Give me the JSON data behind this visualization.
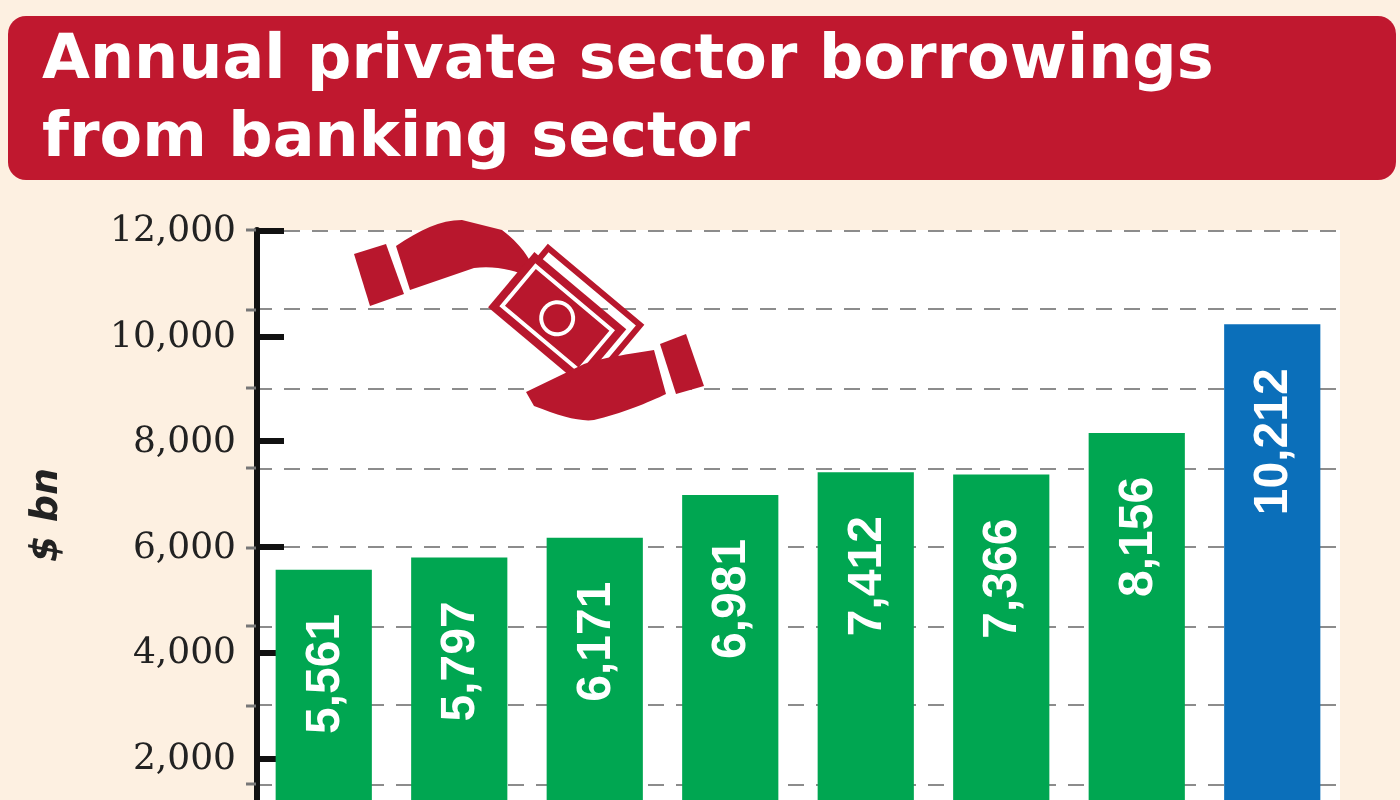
{
  "chart_data": {
    "type": "bar",
    "title": "Annual private sector borrowings from banking sector",
    "ylabel": "$ bn",
    "categories": [
      null,
      null,
      null,
      null,
      null,
      null,
      null,
      null
    ],
    "values": [
      5561,
      5797,
      6171,
      6981,
      7412,
      7366,
      8156,
      10212
    ],
    "value_labels": [
      "5,561",
      "5,797",
      "6,171",
      "6,981",
      "7,412",
      "7,366",
      "8,156",
      "10,212"
    ],
    "colors": [
      "#00a651",
      "#00a651",
      "#00a651",
      "#00a651",
      "#00a651",
      "#00a651",
      "#00a651",
      "#0b6fba"
    ],
    "ylim": [
      1200,
      12000
    ],
    "yticks": [
      {
        "value": 1500,
        "label": null
      },
      {
        "value": 2000,
        "label": "2,000"
      },
      {
        "value": 3000,
        "label": null
      },
      {
        "value": 4000,
        "label": "4,000"
      },
      {
        "value": 4500,
        "label": null
      },
      {
        "value": 6000,
        "label": "6,000"
      },
      {
        "value": 7500,
        "label": null
      },
      {
        "value": 8000,
        "label": "8,000"
      },
      {
        "value": 9000,
        "label": null
      },
      {
        "value": 10000,
        "label": "10,000"
      },
      {
        "value": 10500,
        "label": null
      },
      {
        "value": 12000,
        "label": "12,000"
      }
    ],
    "grid": "y",
    "tick_labels": "y"
  }
}
